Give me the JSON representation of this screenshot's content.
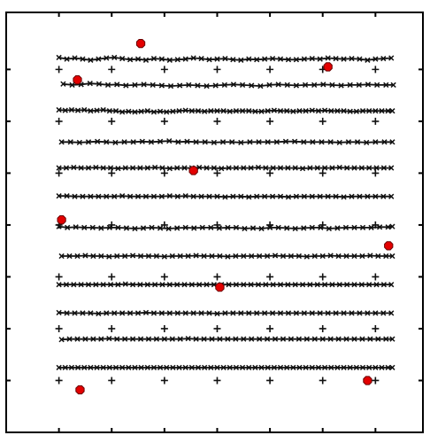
{
  "chart_data": {
    "type": "scatter",
    "title": "",
    "xlabel": "",
    "ylabel": "",
    "xlim": [
      0,
      7.9
    ],
    "ylim": [
      0,
      8.1
    ],
    "grid": false,
    "colors": {
      "axes": "#000000",
      "lines": "#111111",
      "plus_markers": "#111111",
      "x_markers": "#111111",
      "points_fill": "#e30000",
      "points_edge": "#6a0000"
    },
    "x_ticks": [
      1,
      2,
      3,
      4,
      5,
      6,
      7
    ],
    "y_ticks": [
      1,
      2,
      3,
      4,
      5,
      6,
      7
    ],
    "plus_grid": {
      "x": [
        1,
        2,
        3,
        4,
        5,
        6,
        7
      ],
      "y": [
        1,
        2,
        3,
        4,
        5,
        6,
        7
      ]
    },
    "series": [
      {
        "y": 7.2,
        "x": [
          1.0,
          1.15,
          1.3,
          1.45,
          1.6,
          1.75,
          1.9,
          2.05,
          2.2,
          2.35,
          2.5,
          2.65,
          2.8,
          2.95,
          3.1,
          3.25,
          3.4,
          3.55,
          3.7,
          3.85,
          4.0,
          4.15,
          4.3,
          4.45,
          4.6,
          4.75,
          4.9,
          5.05,
          5.2,
          5.35,
          5.5,
          5.65,
          5.8,
          5.95,
          6.1,
          6.25,
          6.4,
          6.55,
          6.7,
          6.85,
          7.0,
          7.15,
          7.3
        ],
        "dy": [
          0.03,
          0.0,
          0.02,
          0.0,
          -0.02,
          0.0,
          0.02,
          0.03,
          0.01,
          -0.01,
          0.0,
          -0.02,
          0.01,
          0.0,
          -0.02,
          -0.01,
          0.0,
          0.02,
          0.01,
          -0.01,
          0.0,
          0.01,
          -0.01,
          -0.02,
          0.0,
          -0.01,
          0.0,
          0.01,
          0.0,
          -0.01,
          -0.01,
          0.0,
          0.01,
          0.0,
          0.02,
          0.01,
          0.0,
          0.01,
          0.0,
          -0.02,
          0.0,
          0.01,
          0.02
        ]
      },
      {
        "y": 6.7,
        "x": [
          1.08,
          1.25,
          1.42,
          1.59,
          1.76,
          1.93,
          2.1,
          2.27,
          2.44,
          2.61,
          2.78,
          2.95,
          3.12,
          3.29,
          3.46,
          3.63,
          3.8,
          3.97,
          4.14,
          4.31,
          4.48,
          4.65,
          4.82,
          4.99,
          5.16,
          5.33,
          5.5,
          5.67,
          5.84,
          6.01,
          6.18,
          6.35,
          6.52,
          6.69,
          6.86,
          7.03,
          7.2,
          7.34
        ],
        "dy": [
          0.02,
          0.0,
          0.01,
          0.03,
          0.02,
          0.0,
          0.01,
          -0.01,
          0.0,
          0.01,
          0.0,
          -0.01,
          -0.02,
          -0.01,
          0.0,
          -0.01,
          -0.02,
          -0.01,
          0.0,
          0.01,
          0.0,
          -0.01,
          -0.02,
          0.0,
          0.01,
          0.0,
          -0.01,
          0.0,
          0.0,
          0.01,
          0.0,
          -0.01,
          0.0,
          0.0,
          0.01,
          0.0,
          0.0,
          0.0
        ]
      },
      {
        "y": 6.2,
        "x": [
          1.0,
          1.12,
          1.24,
          1.36,
          1.48,
          1.6,
          1.72,
          1.84,
          1.96,
          2.08,
          2.2,
          2.32,
          2.44,
          2.56,
          2.68,
          2.8,
          2.92,
          3.04,
          3.16,
          3.28,
          3.4,
          3.52,
          3.64,
          3.76,
          3.88,
          4.0,
          4.12,
          4.24,
          4.36,
          4.48,
          4.6,
          4.72,
          4.84,
          4.96,
          5.08,
          5.2,
          5.32,
          5.44,
          5.56,
          5.68,
          5.8,
          5.92,
          6.04,
          6.16,
          6.28,
          6.4,
          6.52,
          6.64,
          6.76,
          6.88,
          7.0,
          7.12,
          7.24,
          7.32
        ],
        "dy": [
          0.02,
          0.01,
          0.02,
          0.01,
          0.02,
          0.0,
          0.01,
          0.02,
          0.0,
          0.0,
          -0.02,
          -0.01,
          -0.02,
          -0.01,
          0.0,
          -0.02,
          -0.01,
          -0.02,
          -0.01,
          0.0,
          0.01,
          0.0,
          0.0,
          -0.01,
          0.0,
          0.0,
          0.0,
          -0.01,
          0.0,
          0.0,
          0.0,
          -0.01,
          -0.01,
          0.0,
          0.01,
          0.0,
          0.0,
          -0.01,
          0.0,
          0.0,
          0.01,
          0.0,
          0.01,
          0.0,
          0.0,
          0.0,
          -0.01,
          -0.01,
          0.0,
          0.0,
          0.0,
          0.0,
          0.0,
          0.0
        ]
      },
      {
        "y": 5.6,
        "x": [
          1.05,
          1.22,
          1.39,
          1.56,
          1.73,
          1.9,
          2.07,
          2.24,
          2.41,
          2.58,
          2.75,
          2.92,
          3.09,
          3.26,
          3.43,
          3.6,
          3.77,
          3.94,
          4.11,
          4.28,
          4.45,
          4.62,
          4.79,
          4.96,
          5.13,
          5.3,
          5.47,
          5.64,
          5.81,
          5.98,
          6.15,
          6.32,
          6.49,
          6.66,
          6.83,
          7.0,
          7.17,
          7.32
        ],
        "dy": [
          0.0,
          0.0,
          -0.01,
          0.0,
          0.01,
          0.0,
          -0.01,
          0.0,
          0.0,
          0.01,
          0.0,
          0.01,
          0.02,
          0.0,
          0.01,
          0.0,
          0.0,
          -0.01,
          0.0,
          0.0,
          -0.01,
          0.0,
          0.0,
          0.0,
          0.0,
          0.01,
          0.01,
          0.0,
          0.0,
          0.0,
          0.0,
          -0.01,
          0.0,
          0.0,
          -0.01,
          0.0,
          0.0,
          0.0
        ]
      },
      {
        "y": 5.1,
        "x": [
          1.0,
          1.14,
          1.28,
          1.42,
          1.56,
          1.7,
          1.84,
          1.98,
          2.12,
          2.26,
          2.4,
          2.54,
          2.68,
          2.82,
          2.96,
          3.1,
          3.24,
          3.38,
          3.52,
          3.66,
          3.8,
          3.94,
          4.08,
          4.22,
          4.36,
          4.5,
          4.64,
          4.78,
          4.92,
          5.06,
          5.2,
          5.34,
          5.48,
          5.62,
          5.76,
          5.9,
          6.04,
          6.18,
          6.32,
          6.46,
          6.6,
          6.74,
          6.88,
          7.02,
          7.16,
          7.3
        ],
        "dy": [
          0.0,
          0.0,
          0.01,
          0.0,
          0.0,
          0.01,
          0.0,
          0.0,
          -0.01,
          0.0,
          0.0,
          0.0,
          0.0,
          0.01,
          0.0,
          -0.01,
          0.0,
          0.0,
          0.0,
          0.01,
          0.0,
          0.0,
          -0.01,
          0.0,
          0.0,
          0.0,
          0.0,
          0.01,
          0.0,
          0.0,
          0.0,
          0.0,
          0.0,
          -0.01,
          0.0,
          0.0,
          0.0,
          0.0,
          0.01,
          0.0,
          0.0,
          0.0,
          0.0,
          0.0,
          0.0,
          0.0
        ]
      },
      {
        "y": 4.55,
        "x": [
          1.0,
          1.15,
          1.3,
          1.45,
          1.6,
          1.75,
          1.9,
          2.05,
          2.2,
          2.35,
          2.5,
          2.65,
          2.8,
          2.95,
          3.1,
          3.25,
          3.4,
          3.55,
          3.7,
          3.85,
          4.0,
          4.15,
          4.3,
          4.45,
          4.6,
          4.75,
          4.9,
          5.05,
          5.2,
          5.35,
          5.5,
          5.65,
          5.8,
          5.95,
          6.1,
          6.25,
          6.4,
          6.55,
          6.7,
          6.85,
          7.0,
          7.15,
          7.3
        ],
        "dy": [
          0.01,
          0.01,
          0.0,
          0.0,
          0.0,
          0.0,
          0.0,
          0.0,
          0.01,
          0.0,
          0.0,
          0.0,
          0.0,
          0.0,
          0.01,
          0.0,
          0.01,
          0.0,
          0.0,
          0.0,
          0.0,
          -0.01,
          0.0,
          0.0,
          -0.01,
          0.0,
          0.0,
          0.0,
          0.0,
          -0.01,
          0.0,
          0.0,
          0.0,
          0.0,
          0.0,
          0.0,
          -0.01,
          0.0,
          0.0,
          0.0,
          0.0,
          0.0,
          0.0
        ]
      },
      {
        "y": 3.95,
        "x": [
          1.0,
          1.16,
          1.32,
          1.48,
          1.64,
          1.8,
          1.96,
          2.12,
          2.28,
          2.44,
          2.6,
          2.76,
          2.92,
          3.08,
          3.24,
          3.4,
          3.56,
          3.72,
          3.88,
          4.04,
          4.2,
          4.36,
          4.52,
          4.68,
          4.84,
          5.0,
          5.16,
          5.32,
          5.48,
          5.64,
          5.8,
          5.96,
          6.12,
          6.28,
          6.44,
          6.6,
          6.76,
          6.92,
          7.08,
          7.24,
          7.32
        ],
        "dy": [
          0.02,
          0.0,
          0.01,
          0.0,
          0.0,
          -0.01,
          0.0,
          0.0,
          -0.01,
          -0.02,
          -0.01,
          0.0,
          -0.01,
          -0.02,
          -0.01,
          0.0,
          -0.01,
          0.0,
          0.0,
          -0.01,
          0.0,
          0.0,
          -0.02,
          -0.01,
          -0.02,
          0.0,
          0.0,
          -0.01,
          -0.02,
          -0.01,
          0.0,
          0.0,
          -0.02,
          -0.01,
          0.0,
          0.0,
          0.0,
          0.0,
          0.01,
          0.01,
          0.02
        ]
      },
      {
        "y": 3.4,
        "x": [
          1.05,
          1.2,
          1.35,
          1.5,
          1.65,
          1.8,
          1.95,
          2.1,
          2.25,
          2.4,
          2.55,
          2.7,
          2.85,
          3.0,
          3.15,
          3.3,
          3.45,
          3.6,
          3.75,
          3.9,
          4.05,
          4.2,
          4.35,
          4.5,
          4.65,
          4.8,
          4.95,
          5.1,
          5.25,
          5.4,
          5.55,
          5.7,
          5.85,
          6.0,
          6.15,
          6.3,
          6.45,
          6.6,
          6.75,
          6.9,
          7.05,
          7.2,
          7.32
        ],
        "dy": [
          0.0,
          0.0,
          0.0,
          0.01,
          0.0,
          0.0,
          -0.01,
          0.0,
          0.0,
          0.01,
          0.0,
          0.0,
          0.0,
          -0.01,
          0.0,
          0.0,
          0.0,
          0.01,
          0.0,
          0.0,
          0.0,
          -0.01,
          0.0,
          0.0,
          0.0,
          0.0,
          0.0,
          0.01,
          0.0,
          0.0,
          0.0,
          -0.01,
          0.0,
          0.0,
          0.01,
          0.0,
          0.0,
          0.0,
          0.0,
          0.01,
          0.0,
          0.0,
          0.0
        ]
      },
      {
        "y": 2.85,
        "x": [
          1.0,
          1.14,
          1.28,
          1.42,
          1.56,
          1.7,
          1.84,
          1.98,
          2.12,
          2.26,
          2.4,
          2.54,
          2.68,
          2.82,
          2.96,
          3.1,
          3.24,
          3.38,
          3.52,
          3.66,
          3.8,
          3.94,
          4.08,
          4.22,
          4.36,
          4.5,
          4.64,
          4.78,
          4.92,
          5.06,
          5.2,
          5.34,
          5.48,
          5.62,
          5.76,
          5.9,
          6.04,
          6.18,
          6.32,
          6.46,
          6.6,
          6.74,
          6.88,
          7.02,
          7.16,
          7.3
        ],
        "dy": [
          0.0,
          0.0,
          0.0,
          0.0,
          0.0,
          0.0,
          0.0,
          0.0,
          0.0,
          0.01,
          0.0,
          0.0,
          0.0,
          0.0,
          0.0,
          0.0,
          0.0,
          0.0,
          0.0,
          0.0,
          0.0,
          0.0,
          0.0,
          0.0,
          0.0,
          0.0,
          0.0,
          0.0,
          0.0,
          0.0,
          0.0,
          0.0,
          0.0,
          0.0,
          0.0,
          0.0,
          0.0,
          0.0,
          0.0,
          0.0,
          0.0,
          0.0,
          0.0,
          0.0,
          0.0,
          0.0
        ]
      },
      {
        "y": 2.3,
        "x": [
          1.0,
          1.15,
          1.3,
          1.45,
          1.6,
          1.75,
          1.9,
          2.05,
          2.2,
          2.35,
          2.5,
          2.65,
          2.8,
          2.95,
          3.1,
          3.25,
          3.4,
          3.55,
          3.7,
          3.85,
          4.0,
          4.15,
          4.3,
          4.45,
          4.6,
          4.75,
          4.9,
          5.05,
          5.2,
          5.35,
          5.5,
          5.65,
          5.8,
          5.95,
          6.1,
          6.25,
          6.4,
          6.55,
          6.7,
          6.85,
          7.0,
          7.15,
          7.3
        ],
        "dy": [
          0.01,
          0.0,
          0.0,
          0.0,
          0.0,
          -0.01,
          0.0,
          0.0,
          0.0,
          0.0,
          0.0,
          0.01,
          0.0,
          0.0,
          0.0,
          0.0,
          0.0,
          0.0,
          0.0,
          0.0,
          -0.01,
          0.0,
          0.0,
          0.0,
          0.0,
          0.0,
          0.0,
          0.0,
          0.0,
          0.0,
          0.0,
          0.0,
          0.0,
          0.0,
          0.0,
          0.0,
          0.0,
          0.0,
          0.0,
          0.0,
          0.0,
          0.0,
          0.0
        ]
      },
      {
        "y": 1.8,
        "x": [
          1.05,
          1.2,
          1.35,
          1.5,
          1.65,
          1.8,
          1.95,
          2.1,
          2.25,
          2.4,
          2.55,
          2.7,
          2.85,
          3.0,
          3.15,
          3.3,
          3.45,
          3.6,
          3.75,
          3.9,
          4.05,
          4.2,
          4.35,
          4.5,
          4.65,
          4.8,
          4.95,
          5.1,
          5.25,
          5.4,
          5.55,
          5.7,
          5.85,
          6.0,
          6.15,
          6.3,
          6.45,
          6.6,
          6.75,
          6.9,
          7.05,
          7.2,
          7.32
        ],
        "dy": [
          -0.01,
          0.0,
          0.0,
          0.0,
          0.0,
          0.0,
          0.01,
          0.0,
          0.0,
          0.0,
          0.0,
          0.0,
          0.0,
          0.0,
          0.0,
          0.0,
          0.01,
          0.0,
          0.0,
          0.0,
          0.0,
          0.0,
          0.0,
          0.0,
          0.0,
          0.0,
          0.0,
          0.0,
          0.0,
          0.0,
          0.0,
          0.0,
          0.0,
          0.0,
          0.0,
          0.0,
          0.0,
          0.0,
          0.0,
          0.0,
          0.0,
          0.0,
          0.0
        ]
      },
      {
        "y": 1.25,
        "x": [
          1.0,
          1.12,
          1.24,
          1.36,
          1.48,
          1.6,
          1.72,
          1.84,
          1.96,
          2.08,
          2.2,
          2.32,
          2.44,
          2.56,
          2.68,
          2.8,
          2.92,
          3.04,
          3.16,
          3.28,
          3.4,
          3.52,
          3.64,
          3.76,
          3.88,
          4.0,
          4.12,
          4.24,
          4.36,
          4.48,
          4.6,
          4.72,
          4.84,
          4.96,
          5.08,
          5.2,
          5.32,
          5.44,
          5.56,
          5.68,
          5.8,
          5.92,
          6.04,
          6.16,
          6.28,
          6.4,
          6.52,
          6.64,
          6.76,
          6.88,
          7.0,
          7.12,
          7.24,
          7.32
        ],
        "dy": [
          0.0,
          0.0,
          0.0,
          0.0,
          0.0,
          0.0,
          0.0,
          0.0,
          0.0,
          0.0,
          0.0,
          0.0,
          0.0,
          0.0,
          0.0,
          0.0,
          0.0,
          0.0,
          0.0,
          0.0,
          0.0,
          0.0,
          0.0,
          0.0,
          0.0,
          0.0,
          0.0,
          0.0,
          0.0,
          0.0,
          0.0,
          0.0,
          0.0,
          0.0,
          0.0,
          0.0,
          0.0,
          0.0,
          0.0,
          0.0,
          0.0,
          0.0,
          0.0,
          0.0,
          0.0,
          0.0,
          0.0,
          0.0,
          0.0,
          0.0,
          0.0,
          0.0,
          0.0,
          0.0
        ]
      }
    ],
    "points": [
      {
        "x": 2.55,
        "y": 7.5
      },
      {
        "x": 6.1,
        "y": 7.05
      },
      {
        "x": 1.35,
        "y": 6.8
      },
      {
        "x": 3.55,
        "y": 5.05
      },
      {
        "x": 1.05,
        "y": 4.1
      },
      {
        "x": 7.25,
        "y": 3.6
      },
      {
        "x": 4.05,
        "y": 2.8
      },
      {
        "x": 6.85,
        "y": 1.0
      },
      {
        "x": 1.4,
        "y": 0.82
      }
    ]
  }
}
